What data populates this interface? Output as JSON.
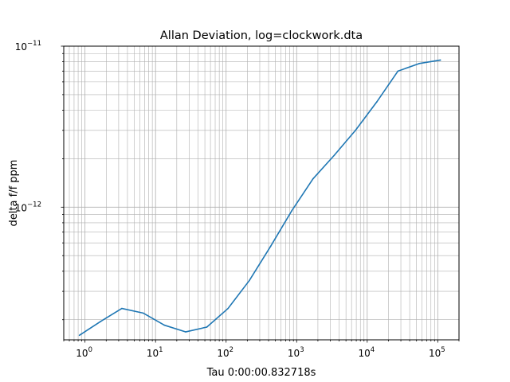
{
  "chart_data": {
    "type": "line",
    "title": "Allan Deviation, log=clockwork.dta",
    "xlabel": "Tau 0:00:00.832718s",
    "ylabel": "delta f/f ppm",
    "xscale": "log",
    "yscale": "log",
    "xlim": [
      0.5,
      200000
    ],
    "ylim": [
      1.5e-13,
      1e-11
    ],
    "grid": true,
    "grid_which": "both",
    "legend": "none",
    "x_ticks": [
      {
        "value": 1,
        "base": "10",
        "exp": "0"
      },
      {
        "value": 10,
        "base": "10",
        "exp": "1"
      },
      {
        "value": 100,
        "base": "10",
        "exp": "2"
      },
      {
        "value": 1000,
        "base": "10",
        "exp": "3"
      },
      {
        "value": 10000,
        "base": "10",
        "exp": "4"
      },
      {
        "value": 100000,
        "base": "10",
        "exp": "5"
      }
    ],
    "y_ticks": [
      {
        "value": 1e-12,
        "base": "10",
        "exp": "−12"
      },
      {
        "value": 1e-11,
        "base": "10",
        "exp": "−11"
      }
    ],
    "series": [
      {
        "color": "#1f77b4",
        "points": [
          [
            0.8327,
            1.6e-13
          ],
          [
            1.665,
            1.95e-13
          ],
          [
            3.331,
            2.35e-13
          ],
          [
            6.662,
            2.2e-13
          ],
          [
            13.32,
            1.85e-13
          ],
          [
            26.65,
            1.68e-13
          ],
          [
            53.3,
            1.8e-13
          ],
          [
            106.6,
            2.35e-13
          ],
          [
            213.2,
            3.5e-13
          ],
          [
            426.4,
            5.7e-13
          ],
          [
            852.7,
            9.5e-13
          ],
          [
            1705,
            1.5e-12
          ],
          [
            3411,
            2.1e-12
          ],
          [
            6821,
            3e-12
          ],
          [
            13642,
            4.5e-12
          ],
          [
            27284,
            7e-12
          ],
          [
            54569,
            7.8e-12
          ],
          [
            109137,
            8.2e-12
          ]
        ]
      }
    ]
  }
}
